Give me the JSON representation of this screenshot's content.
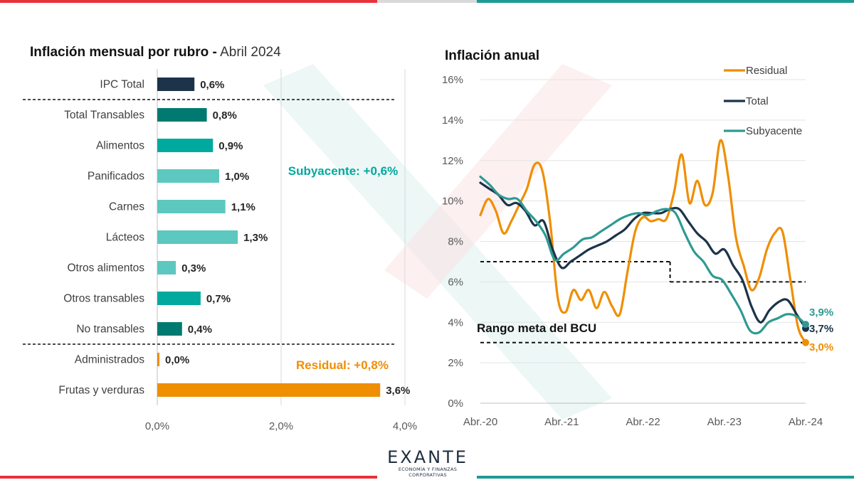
{
  "colors": {
    "navy": "#1c3349",
    "teal_dark": "#007a70",
    "teal": "#00a99d",
    "teal_light": "#5cc8bf",
    "orange": "#ef8e00",
    "line_teal": "#2e9a92",
    "bar_red": "#e8313a",
    "bar_teal": "#1e9b95"
  },
  "brand": {
    "name": "EXANTE",
    "tagline": "ECONOMÍA Y FINANZAS CORPORATIVAS"
  },
  "left_title": {
    "bold": "Inflación mensual por rubro -",
    "light": "Abril 2024"
  },
  "right_title": "Inflación anual",
  "chart_data": [
    {
      "type": "bar",
      "orientation": "horizontal",
      "title": "Inflación mensual por rubro - Abril 2024",
      "categories": [
        "IPC Total",
        "Total Transables",
        "Alimentos",
        "Panificados",
        "Carnes",
        "Lácteos",
        "Otros alimentos",
        "Otros transables",
        "No transables",
        "Administrados",
        "Frutas y verduras"
      ],
      "values": [
        0.6,
        0.8,
        0.9,
        1.0,
        1.1,
        1.3,
        0.3,
        0.7,
        0.4,
        0.0,
        3.6
      ],
      "value_labels": [
        "0,6%",
        "0,8%",
        "0,9%",
        "1,0%",
        "1,1%",
        "1,3%",
        "0,3%",
        "0,7%",
        "0,4%",
        "0,0%",
        "3,6%"
      ],
      "bar_colors": [
        "#1c3349",
        "#007a70",
        "#00a99d",
        "#5cc8bf",
        "#5cc8bf",
        "#5cc8bf",
        "#5cc8bf",
        "#00a99d",
        "#007a70",
        "#ef8e00",
        "#ef8e00"
      ],
      "xlim": [
        0,
        4
      ],
      "x_ticks": [
        0,
        2,
        4
      ],
      "x_tick_labels": [
        "0,0%",
        "2,0%",
        "4,0%"
      ],
      "annotations": [
        {
          "text": "Subyacente: +0,6%",
          "color": "#00a99d"
        },
        {
          "text": "Residual: +0,8%",
          "color": "#ef8e00"
        }
      ],
      "grid": "vertical"
    },
    {
      "type": "line",
      "title": "Inflación anual",
      "x_start": "2020-04",
      "x_end": "2024-04",
      "x_ticks": [
        "2020-04",
        "2021-04",
        "2022-04",
        "2023-04",
        "2024-04"
      ],
      "x_tick_labels": [
        "Abr.-20",
        "Abr.-21",
        "Abr.-22",
        "Abr.-23",
        "Abr.-24"
      ],
      "ylim": [
        0,
        16
      ],
      "y_ticks": [
        0,
        2,
        4,
        6,
        8,
        10,
        12,
        14,
        16
      ],
      "y_tick_labels": [
        "0%",
        "2%",
        "4%",
        "6%",
        "8%",
        "10%",
        "12%",
        "14%",
        "16%"
      ],
      "legend_position": "top-right",
      "series": [
        {
          "name": "Residual",
          "color": "#ef8e00",
          "end_label": "3,0%",
          "values": [
            9.3,
            10.1,
            9.5,
            8.4,
            9.0,
            9.8,
            10.6,
            11.8,
            11.5,
            9.0,
            5.2,
            4.5,
            5.6,
            5.1,
            5.6,
            4.7,
            5.5,
            4.8,
            4.4,
            6.5,
            8.5,
            9.2,
            9.0,
            9.1,
            9.1,
            10.4,
            12.3,
            9.9,
            11.0,
            9.8,
            10.4,
            13.0,
            11.2,
            8.2,
            6.8,
            5.6,
            6.2,
            7.6,
            8.4,
            8.5,
            6.2,
            3.8,
            3.0
          ]
        },
        {
          "name": "Total",
          "color": "#1c3349",
          "end_label": "3,7%",
          "values": [
            10.9,
            10.6,
            10.3,
            9.8,
            9.9,
            9.5,
            8.8,
            9.0,
            7.6,
            6.7,
            7.0,
            7.3,
            7.6,
            7.8,
            8.0,
            8.3,
            8.6,
            9.1,
            9.4,
            9.4,
            9.4,
            9.6,
            9.6,
            9.0,
            8.4,
            8.0,
            7.4,
            7.6,
            6.8,
            6.1,
            4.8,
            4.0,
            4.6,
            5.0,
            5.1,
            4.4,
            3.7
          ]
        },
        {
          "name": "Subyacente",
          "color": "#2e9a92",
          "end_label": "3,9%",
          "values": [
            11.2,
            10.8,
            10.3,
            10.1,
            10.1,
            9.5,
            9.0,
            8.3,
            7.1,
            7.4,
            7.7,
            8.1,
            8.2,
            8.5,
            8.8,
            9.1,
            9.3,
            9.4,
            9.3,
            9.5,
            9.6,
            9.4,
            8.4,
            7.5,
            7.0,
            6.3,
            6.1,
            5.4,
            4.6,
            3.6,
            3.5,
            4.0,
            4.2,
            4.4,
            4.3,
            3.9
          ]
        }
      ],
      "reference_lines": [
        {
          "label": "Rango meta del BCU",
          "upper": [
            {
              "from": "2020-04",
              "to": "2022-08",
              "value": 7
            },
            {
              "from": "2022-08",
              "to": "2024-04",
              "value": 6
            }
          ],
          "lower": [
            {
              "from": "2020-04",
              "to": "2024-04",
              "value": 3
            }
          ]
        }
      ]
    }
  ]
}
